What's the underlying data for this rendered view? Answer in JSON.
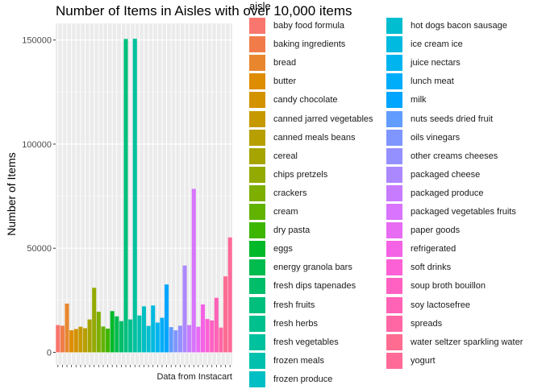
{
  "chart_data": {
    "type": "bar",
    "title": "Number of Items in Aisles with over 10,000 items",
    "caption": "Data from Instacart",
    "xlabel": "",
    "ylabel": "Number of Items",
    "legend_title": "aisle",
    "legend_placement": "right",
    "ylim": [
      -6000,
      158000
    ],
    "yticks": [
      0,
      50000,
      100000,
      150000
    ],
    "ytick_labels": [
      "0",
      "50000",
      "100000",
      "150000"
    ],
    "grid": true,
    "categories": [
      "baby food formula",
      "baking ingredients",
      "bread",
      "butter",
      "candy chocolate",
      "canned jarred vegetables",
      "canned meals beans",
      "cereal",
      "chips pretzels",
      "crackers",
      "cream",
      "dry pasta",
      "eggs",
      "energy granola bars",
      "fresh dips tapenades",
      "fresh fruits",
      "fresh herbs",
      "fresh vegetables",
      "frozen meals",
      "frozen produce",
      "hot dogs bacon sausage",
      "ice cream ice",
      "juice nectars",
      "lunch meat",
      "milk",
      "nuts seeds dried fruit",
      "oils vinegars",
      "other creams cheeses",
      "packaged cheese",
      "packaged produce",
      "packaged vegetables fruits",
      "paper goods",
      "refrigerated",
      "soft drinks",
      "soup broth bouillon",
      "soy lactosefree",
      "spreads",
      "water seltzer sparkling water",
      "yogurt"
    ],
    "values": [
      13100,
      12800,
      23400,
      10600,
      11200,
      12300,
      11600,
      15800,
      31000,
      19500,
      12400,
      11400,
      19800,
      17300,
      15000,
      150500,
      15800,
      150600,
      17700,
      22100,
      12700,
      22500,
      14300,
      16600,
      32600,
      12100,
      10600,
      12800,
      41700,
      13100,
      78500,
      12300,
      23000,
      16000,
      15300,
      26200,
      11900,
      36500,
      55200
    ],
    "colors": [
      "#F8766D",
      "#F17C4A",
      "#E8862E",
      "#DE8C00",
      "#D39200",
      "#C69900",
      "#B79F00",
      "#A6A400",
      "#93AA00",
      "#7DAE00",
      "#62B200",
      "#3DB600",
      "#00B928",
      "#00BB4E",
      "#00BD6A",
      "#00BF7D",
      "#00C08D",
      "#00C19E",
      "#00C1AD",
      "#00BFC4",
      "#00BDCF",
      "#00BAE0",
      "#00B4EF",
      "#00ADFA",
      "#00A5FF",
      "#619CFF",
      "#7F96FF",
      "#9590FF",
      "#AC88FF",
      "#C77CFF",
      "#D874FD",
      "#E76BF3",
      "#F462E5",
      "#FC61D5",
      "#FF61C3",
      "#FF63B6",
      "#FF67A4",
      "#FF6C91",
      "#FF6A98"
    ]
  }
}
